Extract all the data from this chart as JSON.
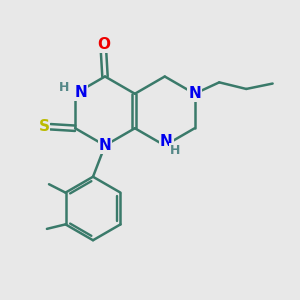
{
  "bg_color": "#e8e8e8",
  "bond_color": "#3a7a6a",
  "bond_width": 1.8,
  "atom_colors": {
    "N": "#0000ee",
    "O": "#ee0000",
    "S": "#bbbb00",
    "H_label": "#558888",
    "C": "#3a7a6a"
  },
  "font_size_atoms": 11,
  "font_size_H": 9,
  "figsize": [
    3.0,
    3.0
  ],
  "dpi": 100
}
